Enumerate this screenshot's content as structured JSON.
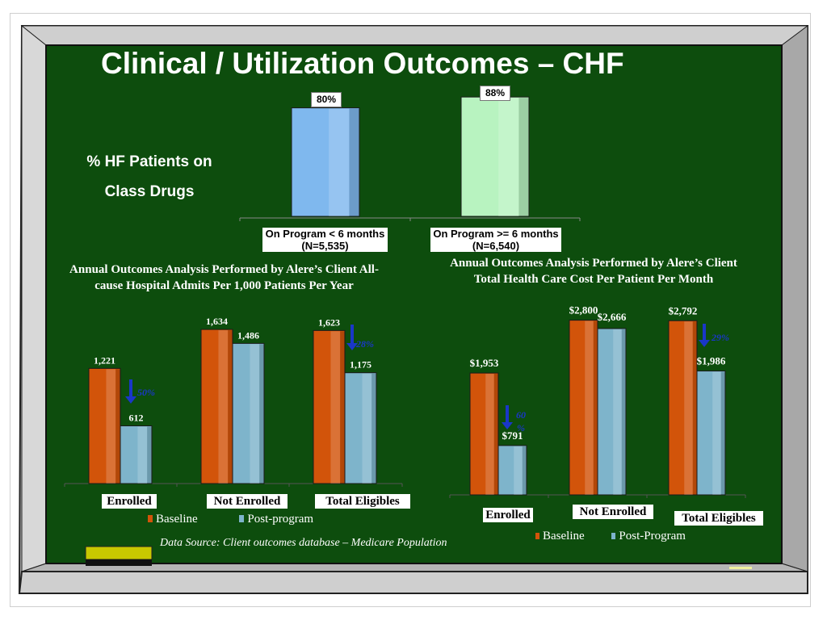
{
  "title": "Clinical / Utilization Outcomes – CHF",
  "colors": {
    "board": "#0d4d0d",
    "frame": "#b8b8b8",
    "baseline": "#d2540a",
    "post": "#7eb4cb",
    "short_bar": "#7fb8ee",
    "long_bar": "#b8f3c0",
    "arrow": "#1a37c8",
    "eraser": "#c8c800"
  },
  "hf_chart": {
    "label_line1": "% HF Patients on",
    "label_line2": "Class Drugs",
    "chart_data": {
      "type": "bar",
      "categories": [
        "On Program < 6 months (N=5,535)",
        "On Program >= 6 months (N=6,540)"
      ],
      "category_lines": [
        [
          "On Program < 6 months",
          "(N=5,535)"
        ],
        [
          "On Program >= 6 months",
          "(N=6,540)"
        ]
      ],
      "values": [
        80,
        88
      ],
      "value_labels": [
        "80%",
        "88%"
      ],
      "ylim": [
        0,
        100
      ]
    }
  },
  "admits_chart": {
    "caption_line1": "Annual Outcomes Analysis Performed by Alere’s Client All-",
    "caption_line2": "cause Hospital Admits Per 1,000 Patients Per Year",
    "chart_data": {
      "type": "bar",
      "categories": [
        "Enrolled",
        "Not Enrolled",
        "Total Eligibles"
      ],
      "series": [
        {
          "name": "Baseline",
          "values": [
            1221,
            1634,
            1623
          ]
        },
        {
          "name": "Post-program",
          "values": [
            612,
            1486,
            1175
          ]
        }
      ],
      "value_labels": [
        [
          "1,221",
          "1,634",
          "1,623"
        ],
        [
          "612",
          "1,486",
          "1,175"
        ]
      ],
      "annotations": [
        "50%",
        "28%"
      ],
      "ylim": [
        0,
        1900
      ]
    },
    "legend": [
      "Baseline",
      "Post-program"
    ]
  },
  "cost_chart": {
    "caption_line1": "Annual Outcomes Analysis Performed by Alere’s Client",
    "caption_line2": "Total Health Care Cost Per Patient Per Month",
    "chart_data": {
      "type": "bar",
      "categories": [
        "Enrolled",
        "Not Enrolled",
        "Total Eligibles"
      ],
      "series": [
        {
          "name": "Baseline",
          "values": [
            1953,
            2800,
            2792
          ]
        },
        {
          "name": "Post-Program",
          "values": [
            791,
            2666,
            1986
          ]
        }
      ],
      "value_labels": [
        [
          "$1,953",
          "$2,800",
          "$2,792"
        ],
        [
          "$791",
          "$2,666",
          "$1,986"
        ]
      ],
      "annotations": [
        "60 %",
        "29%"
      ],
      "ylim": [
        0,
        3300
      ]
    },
    "legend": [
      "Baseline",
      "Post-Program"
    ]
  },
  "source": "Data Source:  Client outcomes database – Medicare Population"
}
